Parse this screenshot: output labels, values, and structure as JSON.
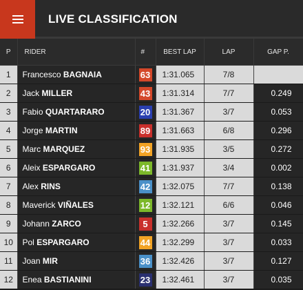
{
  "header": {
    "title": "LIVE CLASSIFICATION",
    "menu_icon": "hamburger-menu-icon"
  },
  "columns": {
    "p": "P",
    "rider": "RIDER",
    "num": "#",
    "best_lap": "BEST LAP",
    "lap": "LAP",
    "gap": "GAP P."
  },
  "rows": [
    {
      "pos": "1",
      "first": "Francesco",
      "last": "BAGNAIA",
      "num": "63",
      "color": "#d4482a",
      "best": "1:31.065",
      "lap": "7/8",
      "gap": ""
    },
    {
      "pos": "2",
      "first": "Jack",
      "last": "MILLER",
      "num": "43",
      "color": "#d4482a",
      "best": "1:31.314",
      "lap": "7/7",
      "gap": "0.249"
    },
    {
      "pos": "3",
      "first": "Fabio",
      "last": "QUARTARARO",
      "num": "20",
      "color": "#2a3fb0",
      "best": "1:31.367",
      "lap": "3/7",
      "gap": "0.053"
    },
    {
      "pos": "4",
      "first": "Jorge",
      "last": "MARTIN",
      "num": "89",
      "color": "#c9302c",
      "best": "1:31.663",
      "lap": "6/8",
      "gap": "0.296"
    },
    {
      "pos": "5",
      "first": "Marc",
      "last": "MARQUEZ",
      "num": "93",
      "color": "#f2a325",
      "best": "1:31.935",
      "lap": "3/5",
      "gap": "0.272"
    },
    {
      "pos": "6",
      "first": "Aleix",
      "last": "ESPARGARO",
      "num": "41",
      "color": "#7cb82a",
      "best": "1:31.937",
      "lap": "3/4",
      "gap": "0.002"
    },
    {
      "pos": "7",
      "first": "Alex",
      "last": "RINS",
      "num": "42",
      "color": "#4a90c8",
      "best": "1:32.075",
      "lap": "7/7",
      "gap": "0.138"
    },
    {
      "pos": "8",
      "first": "Maverick",
      "last": "VIÑALES",
      "num": "12",
      "color": "#7cb82a",
      "best": "1:32.121",
      "lap": "6/6",
      "gap": "0.046"
    },
    {
      "pos": "9",
      "first": "Johann",
      "last": "ZARCO",
      "num": "5",
      "color": "#c9302c",
      "best": "1:32.266",
      "lap": "3/7",
      "gap": "0.145"
    },
    {
      "pos": "10",
      "first": "Pol",
      "last": "ESPARGARO",
      "num": "44",
      "color": "#f2a325",
      "best": "1:32.299",
      "lap": "3/7",
      "gap": "0.033"
    },
    {
      "pos": "11",
      "first": "Joan",
      "last": "MIR",
      "num": "36",
      "color": "#4a90c8",
      "best": "1:32.426",
      "lap": "3/7",
      "gap": "0.127"
    },
    {
      "pos": "12",
      "first": "Enea",
      "last": "BASTIANINI",
      "num": "23",
      "color": "#2a3070",
      "best": "1:32.461",
      "lap": "3/7",
      "gap": "0.035"
    }
  ]
}
